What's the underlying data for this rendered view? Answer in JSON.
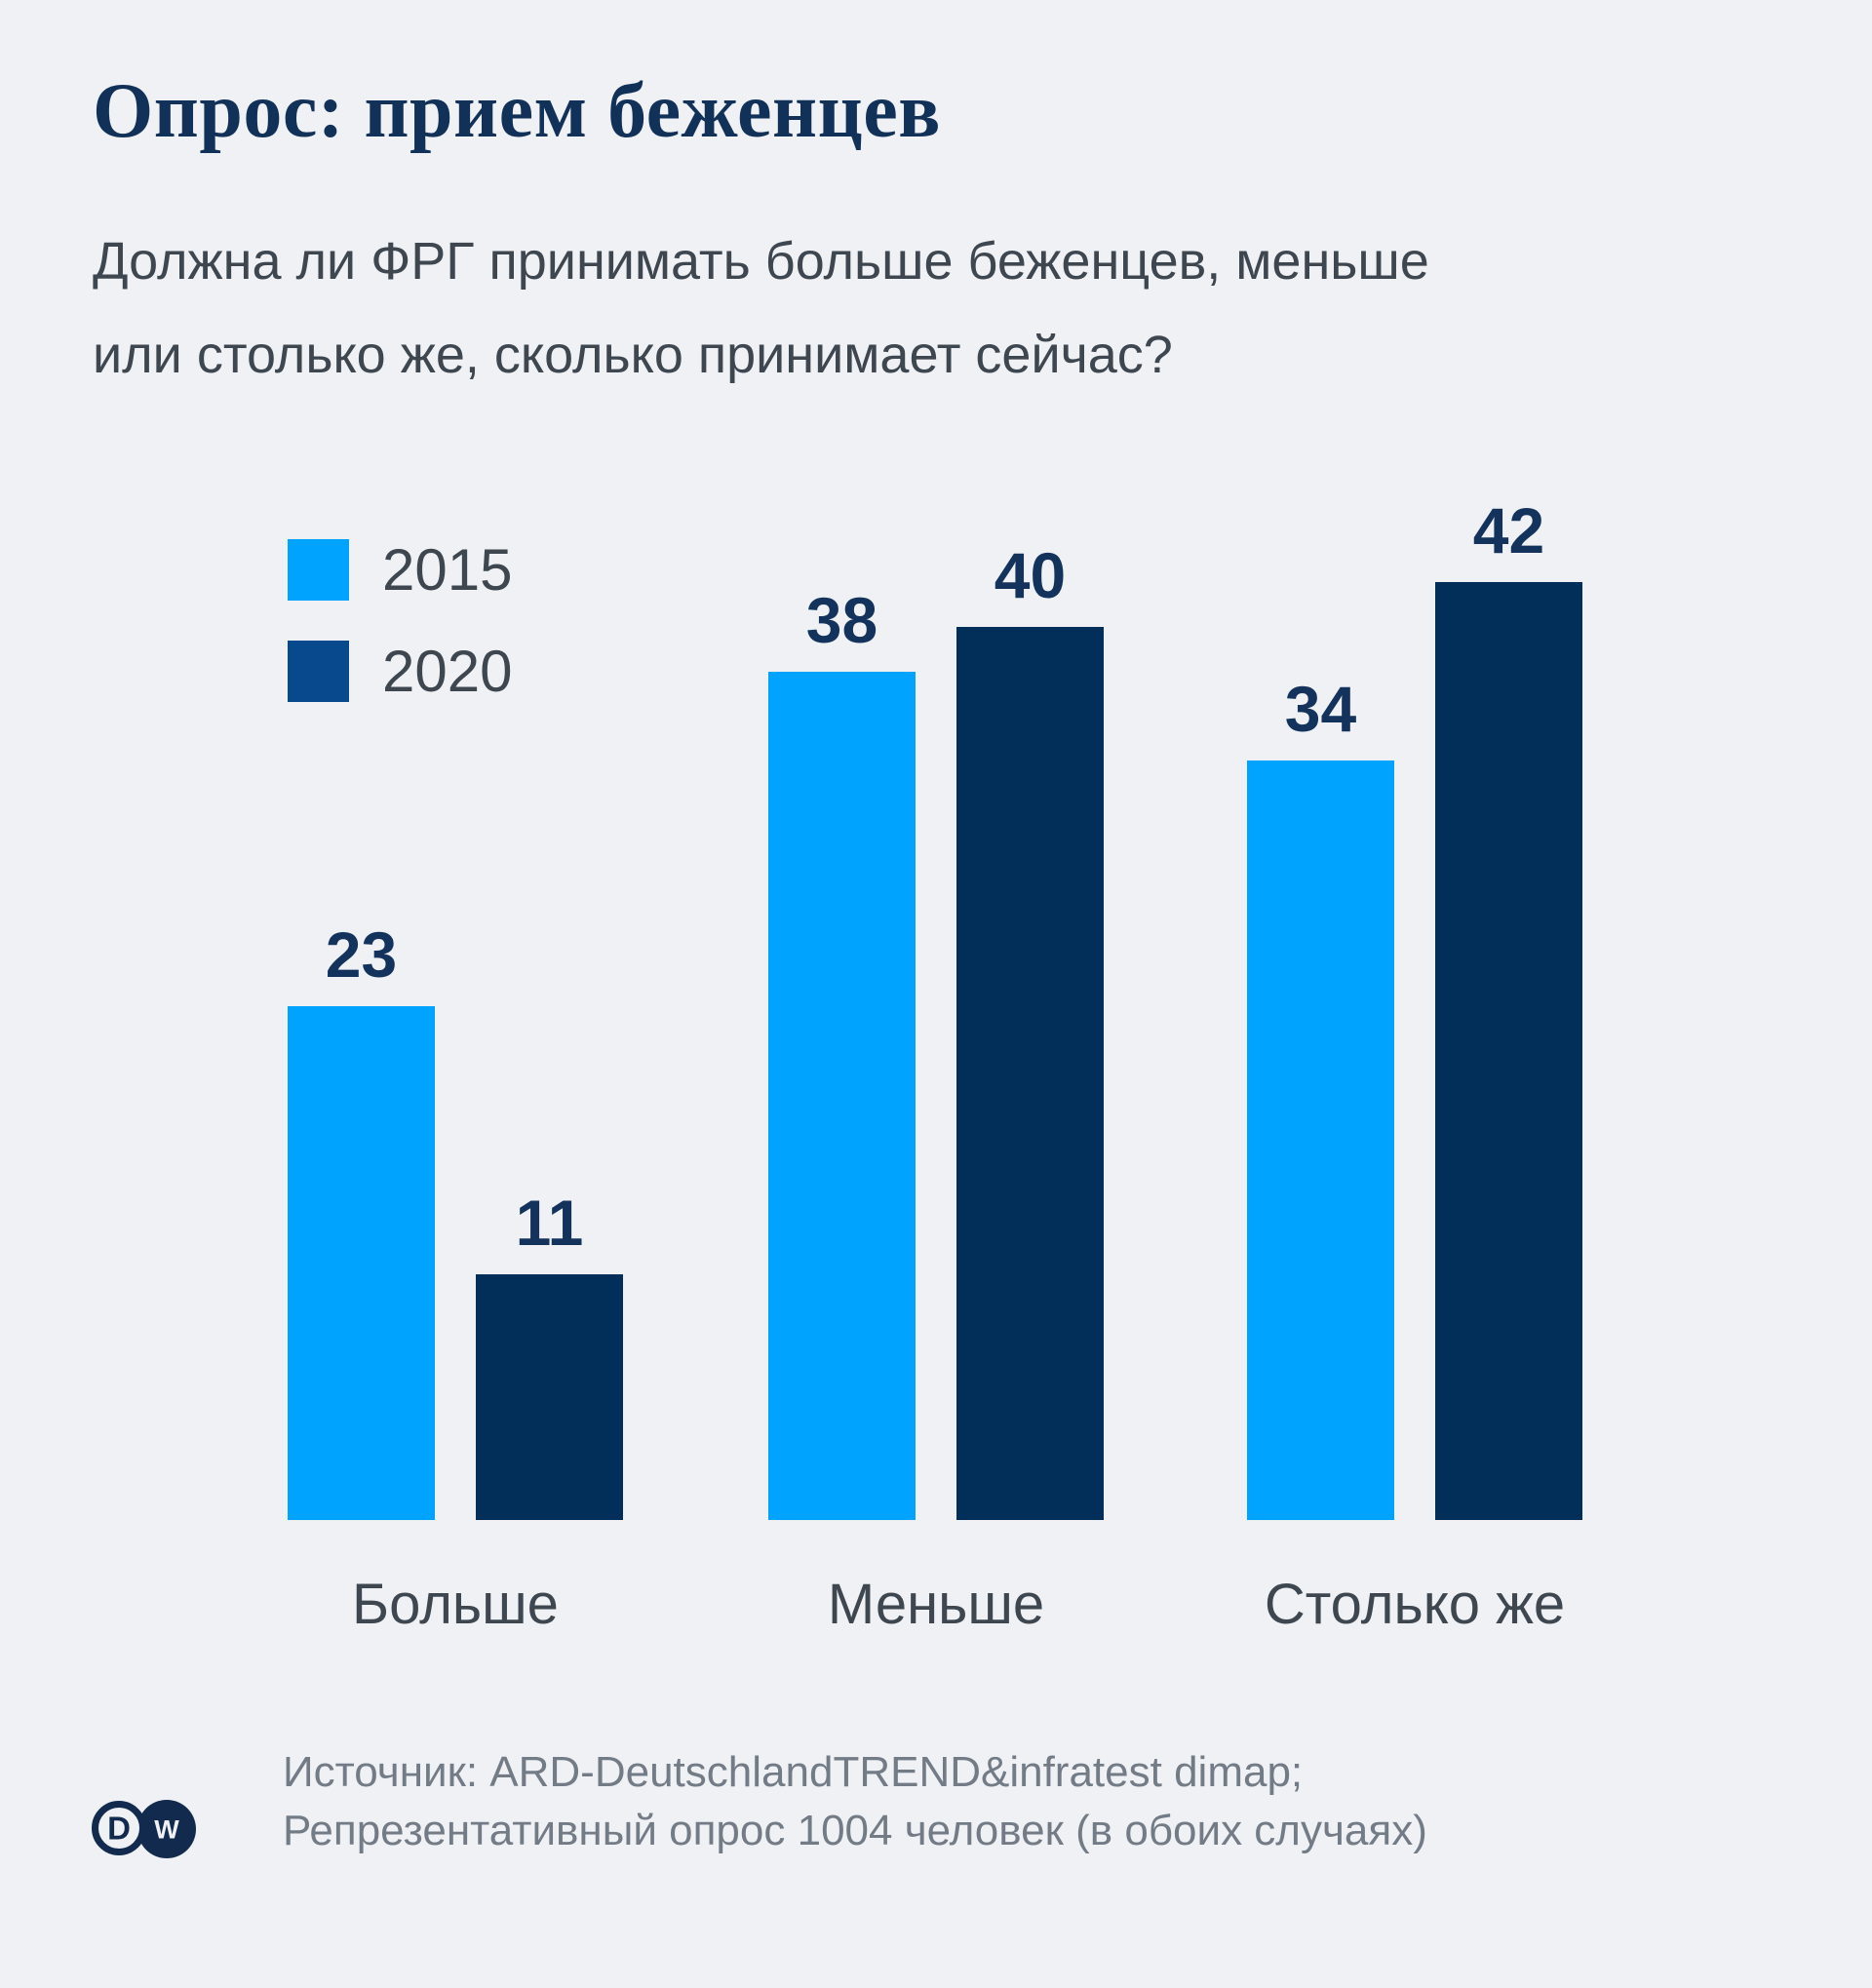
{
  "page": {
    "background": "#eff1f4"
  },
  "header": {
    "title": "Опрос: прием беженцев",
    "subtitle_line1": "Должна ли ФРГ принимать больше беженцев, меньше",
    "subtitle_line2": "или столько же, сколько принимает сейчас?"
  },
  "chart_data": {
    "type": "bar",
    "categories": [
      "Больше",
      "Меньше",
      "Столько же"
    ],
    "series": [
      {
        "name": "2015",
        "values": [
          23,
          38,
          34
        ],
        "color": "#00a3fd",
        "legend_swatch_color": "#00a3fd"
      },
      {
        "name": "2020",
        "values": [
          11,
          40,
          42
        ],
        "color": "#022f5a",
        "legend_swatch_color": "#07498c"
      }
    ],
    "value_labels": true,
    "ylim": [
      0,
      44
    ],
    "grid": false,
    "legend_position": "upper-left",
    "value_label_color": "#13335c",
    "axis_label_color": "#3e4650"
  },
  "footer": {
    "source_line1": "Источник: ARD-DeutschlandTREND&infratest dimap;",
    "source_line2": "Репрезентативный опрос 1004 человек (в обоих случаях)",
    "logo_name": "dw-logo",
    "logo_d": "D",
    "logo_w": "W",
    "logo_color": "#122a4d"
  }
}
